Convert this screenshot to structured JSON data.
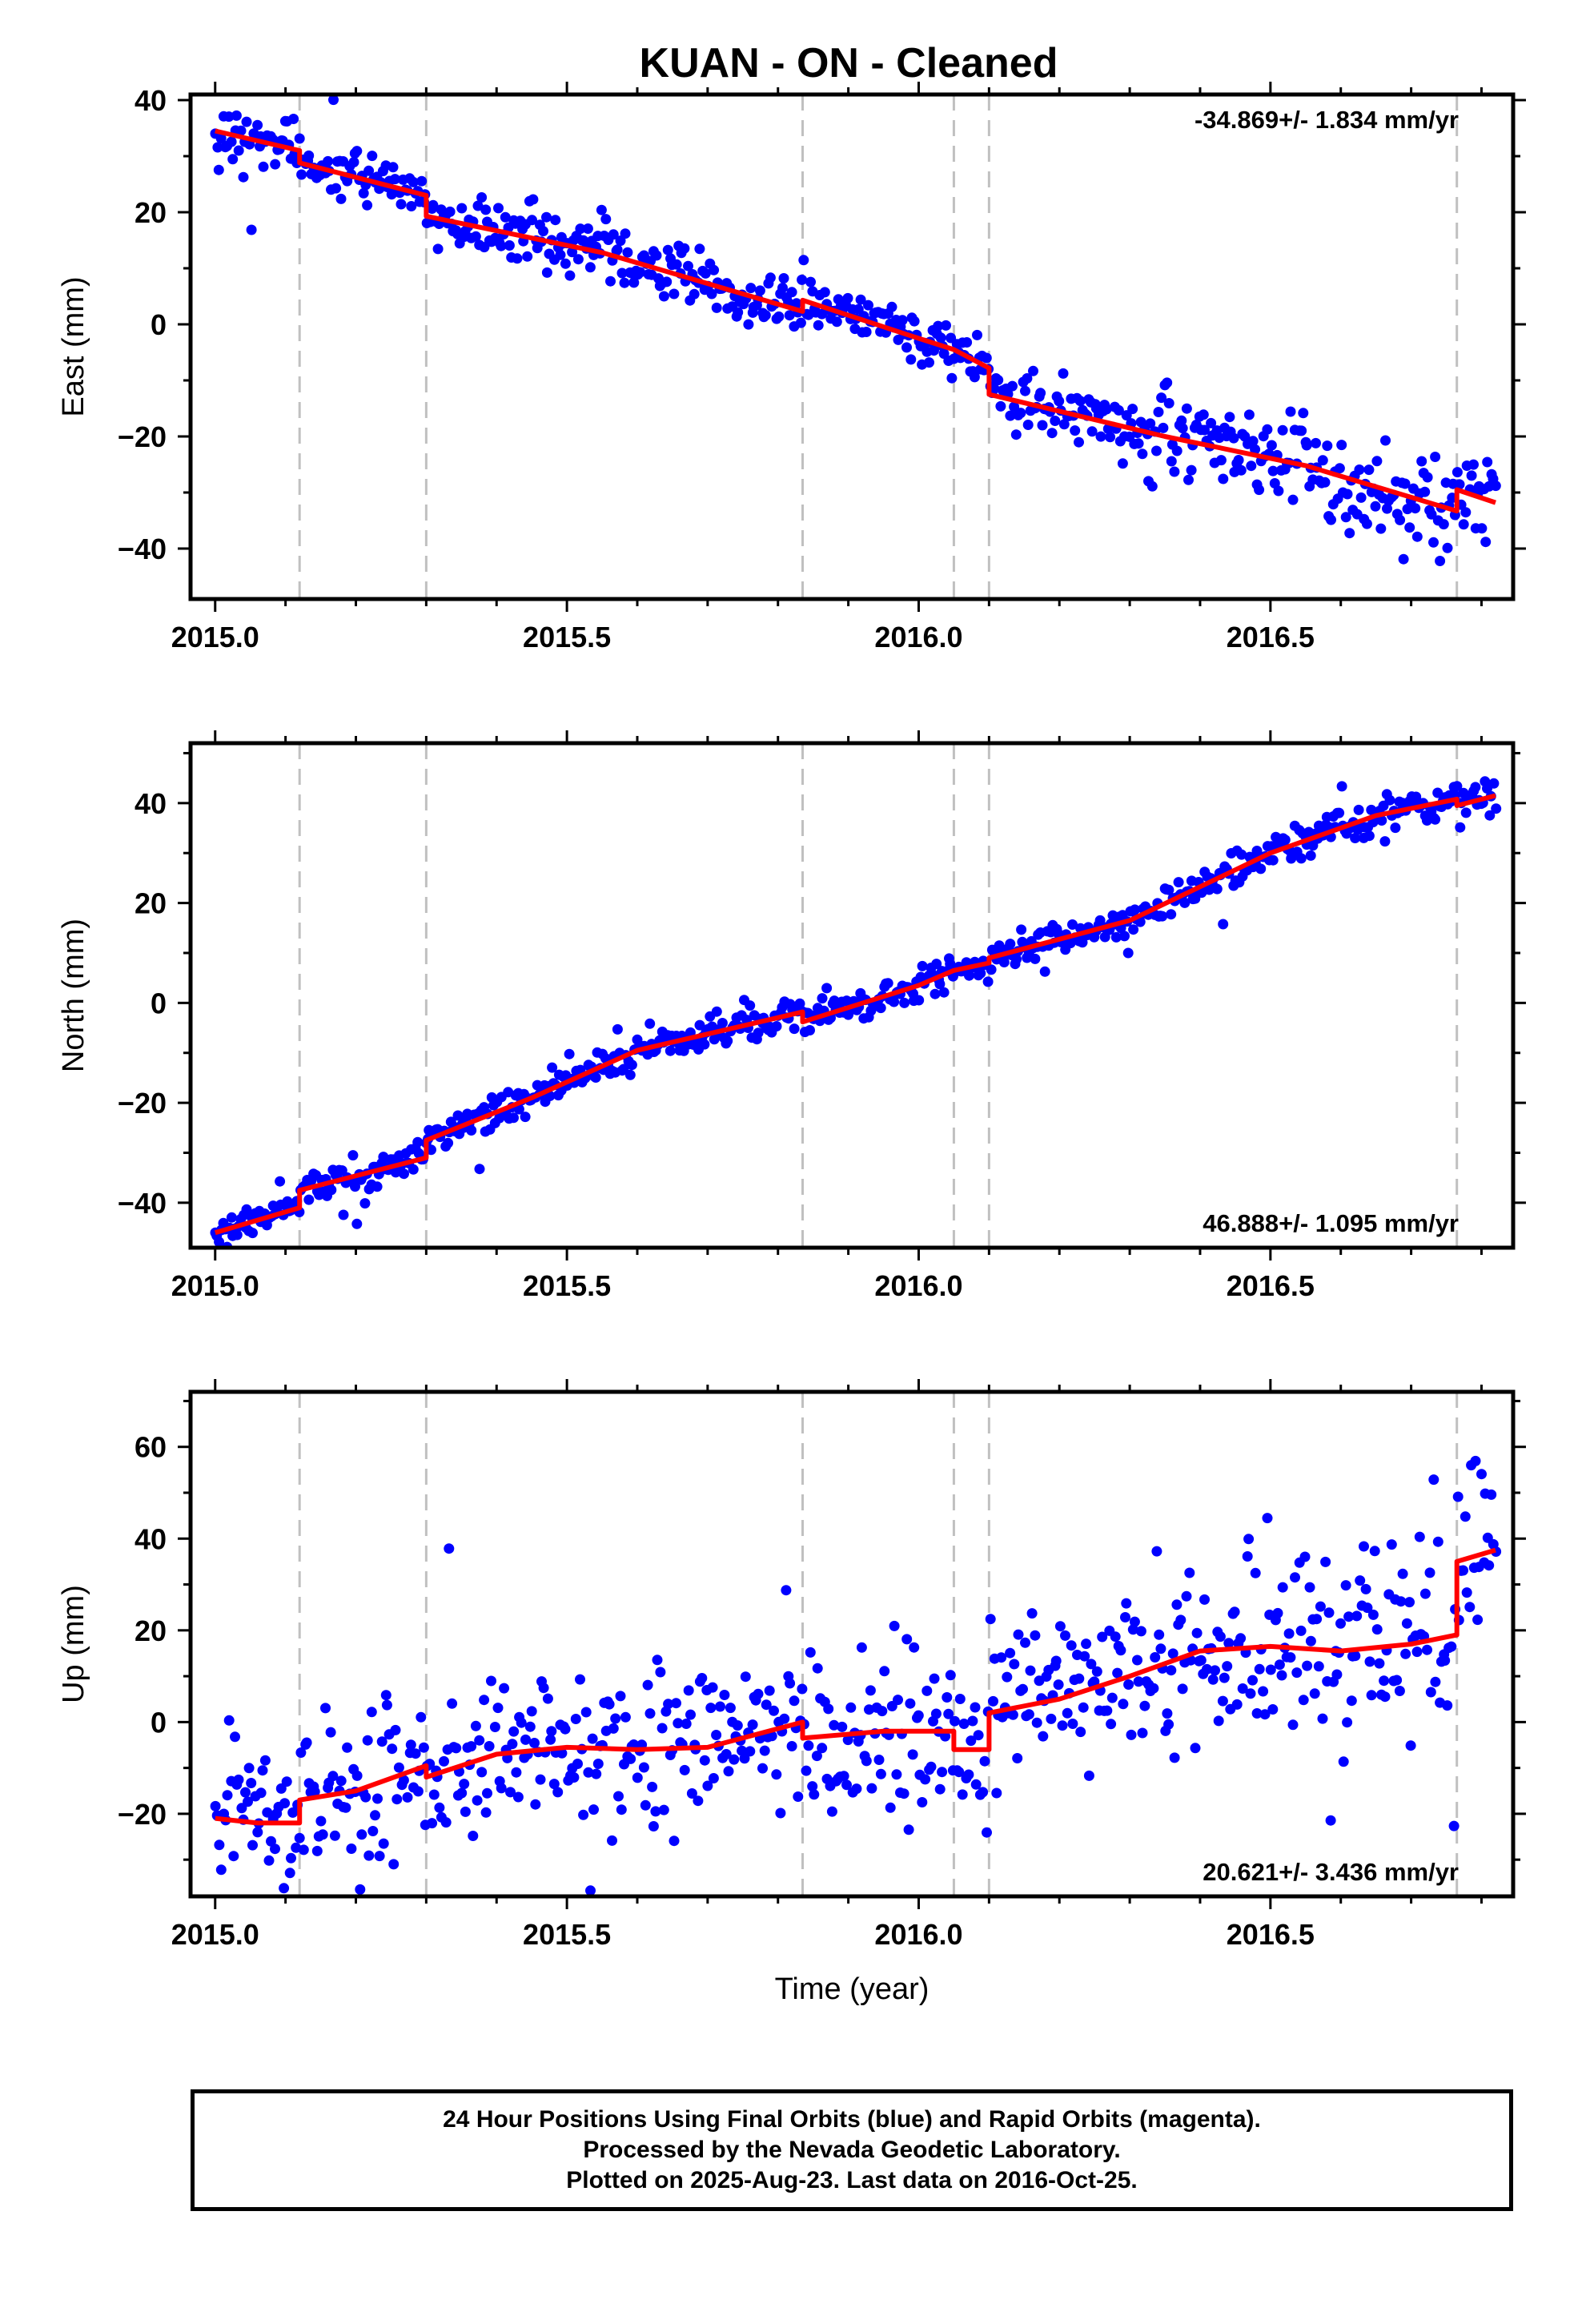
{
  "title": "KUAN  - ON - Cleaned",
  "footer": {
    "line1": "24 Hour Positions Using Final Orbits (blue) and Rapid Orbits (magenta).",
    "line2": "Processed by the Nevada Geodetic Laboratory.",
    "line3": "Plotted on 2025-Aug-23. Last data on 2016-Oct-25."
  },
  "colors": {
    "points": "#0000ff",
    "fit": "#ff0000",
    "events": "#c0c0c0",
    "frame": "#000000"
  },
  "chart_data": [
    {
      "type": "scatter",
      "ylabel": "East (mm)",
      "xlabel": "",
      "xlim": [
        2014.965,
        2016.845
      ],
      "ylim": [
        -49,
        41
      ],
      "xticks": [
        2015.0,
        2015.5,
        2016.0,
        2016.5
      ],
      "xticklabels": [
        "2015.0",
        "2015.5",
        "2016.0",
        "2016.5"
      ],
      "yticks": [
        40,
        20,
        0,
        -20,
        -40
      ],
      "yticklabels": [
        "40",
        "20",
        "0",
        "−20",
        "−40"
      ],
      "rate_text": "-34.869+/- 1.834 mm/yr",
      "rate_position": "top-right",
      "event_lines": [
        2015.12,
        2015.3,
        2015.835,
        2016.05,
        2016.1,
        2016.765
      ],
      "trend": {
        "rate": -34.869,
        "start_x": 2015.0,
        "start_y": 34.5,
        "noise_sd": 2.6
      },
      "fit_line": {
        "x": [
          2015.0,
          2015.12,
          2015.12,
          2015.3,
          2015.3,
          2015.55,
          2015.835,
          2015.835,
          2016.0,
          2016.05,
          2016.1,
          2016.1,
          2016.35,
          2016.55,
          2016.765,
          2016.765,
          2016.82
        ],
        "y": [
          34.5,
          31.0,
          28.8,
          23.0,
          19.3,
          12.8,
          2.3,
          4.3,
          -2.5,
          -4.5,
          -7.8,
          -12.5,
          -20.0,
          -25.2,
          -33.3,
          -29.5,
          -31.8
        ]
      }
    },
    {
      "type": "scatter",
      "ylabel": "North (mm)",
      "xlabel": "",
      "xlim": [
        2014.965,
        2016.845
      ],
      "ylim": [
        -49,
        52
      ],
      "xticks": [
        2015.0,
        2015.5,
        2016.0,
        2016.5
      ],
      "xticklabels": [
        "2015.0",
        "2015.5",
        "2016.0",
        "2016.5"
      ],
      "yticks": [
        40,
        20,
        0,
        -20,
        -40
      ],
      "yticklabels": [
        "40",
        "20",
        "0",
        "−20",
        "−40"
      ],
      "rate_text": "46.888+/- 1.095 mm/yr",
      "rate_position": "bottom-right",
      "event_lines": [
        2015.12,
        2015.3,
        2015.835,
        2016.05,
        2016.1,
        2016.765
      ],
      "trend": {
        "rate": 46.888,
        "start_x": 2015.0,
        "start_y": -46.0,
        "noise_sd": 1.7
      },
      "fit_line": {
        "x": [
          2015.0,
          2015.12,
          2015.12,
          2015.3,
          2015.3,
          2015.45,
          2015.6,
          2015.835,
          2015.835,
          2016.0,
          2016.05,
          2016.1,
          2016.1,
          2016.3,
          2016.5,
          2016.65,
          2016.765,
          2016.765,
          2016.82
        ],
        "y": [
          -46.0,
          -41.0,
          -37.5,
          -31.0,
          -27.5,
          -19.0,
          -9.5,
          -1.8,
          -3.8,
          3.5,
          6.5,
          8.0,
          9.0,
          16.5,
          30.0,
          37.5,
          40.8,
          39.5,
          41.5
        ]
      }
    },
    {
      "type": "scatter",
      "ylabel": "Up (mm)",
      "xlabel": "Time (year)",
      "xlim": [
        2014.965,
        2016.845
      ],
      "ylim": [
        -38,
        72
      ],
      "xticks": [
        2015.0,
        2015.5,
        2016.0,
        2016.5
      ],
      "xticklabels": [
        "2015.0",
        "2015.5",
        "2016.0",
        "2016.5"
      ],
      "yticks": [
        60,
        40,
        20,
        0,
        -20
      ],
      "yticklabels": [
        "60",
        "40",
        "20",
        "0",
        "−20"
      ],
      "rate_text": "20.621+/- 3.436 mm/yr",
      "rate_position": "bottom-right",
      "event_lines": [
        2015.12,
        2015.3,
        2015.835,
        2016.05,
        2016.1,
        2016.765
      ],
      "trend": {
        "rate": 20.621,
        "start_x": 2015.0,
        "start_y": -21.0,
        "noise_sd": 8.5
      },
      "fit_line": {
        "x": [
          2015.0,
          2015.06,
          2015.12,
          2015.12,
          2015.2,
          2015.3,
          2015.3,
          2015.4,
          2015.5,
          2015.6,
          2015.7,
          2015.835,
          2015.835,
          2015.95,
          2016.05,
          2016.05,
          2016.1,
          2016.1,
          2016.2,
          2016.3,
          2016.4,
          2016.5,
          2016.6,
          2016.7,
          2016.765,
          2016.765,
          2016.82
        ],
        "y": [
          -21.0,
          -22.0,
          -22.0,
          -17.0,
          -15.0,
          -9.5,
          -12.0,
          -7.0,
          -5.5,
          -6.0,
          -5.5,
          0.0,
          -3.5,
          -2.0,
          -2.0,
          -6.0,
          -6.0,
          2.0,
          5.0,
          10.0,
          15.5,
          16.5,
          15.5,
          17.0,
          19.0,
          35.0,
          37.5
        ]
      }
    }
  ]
}
